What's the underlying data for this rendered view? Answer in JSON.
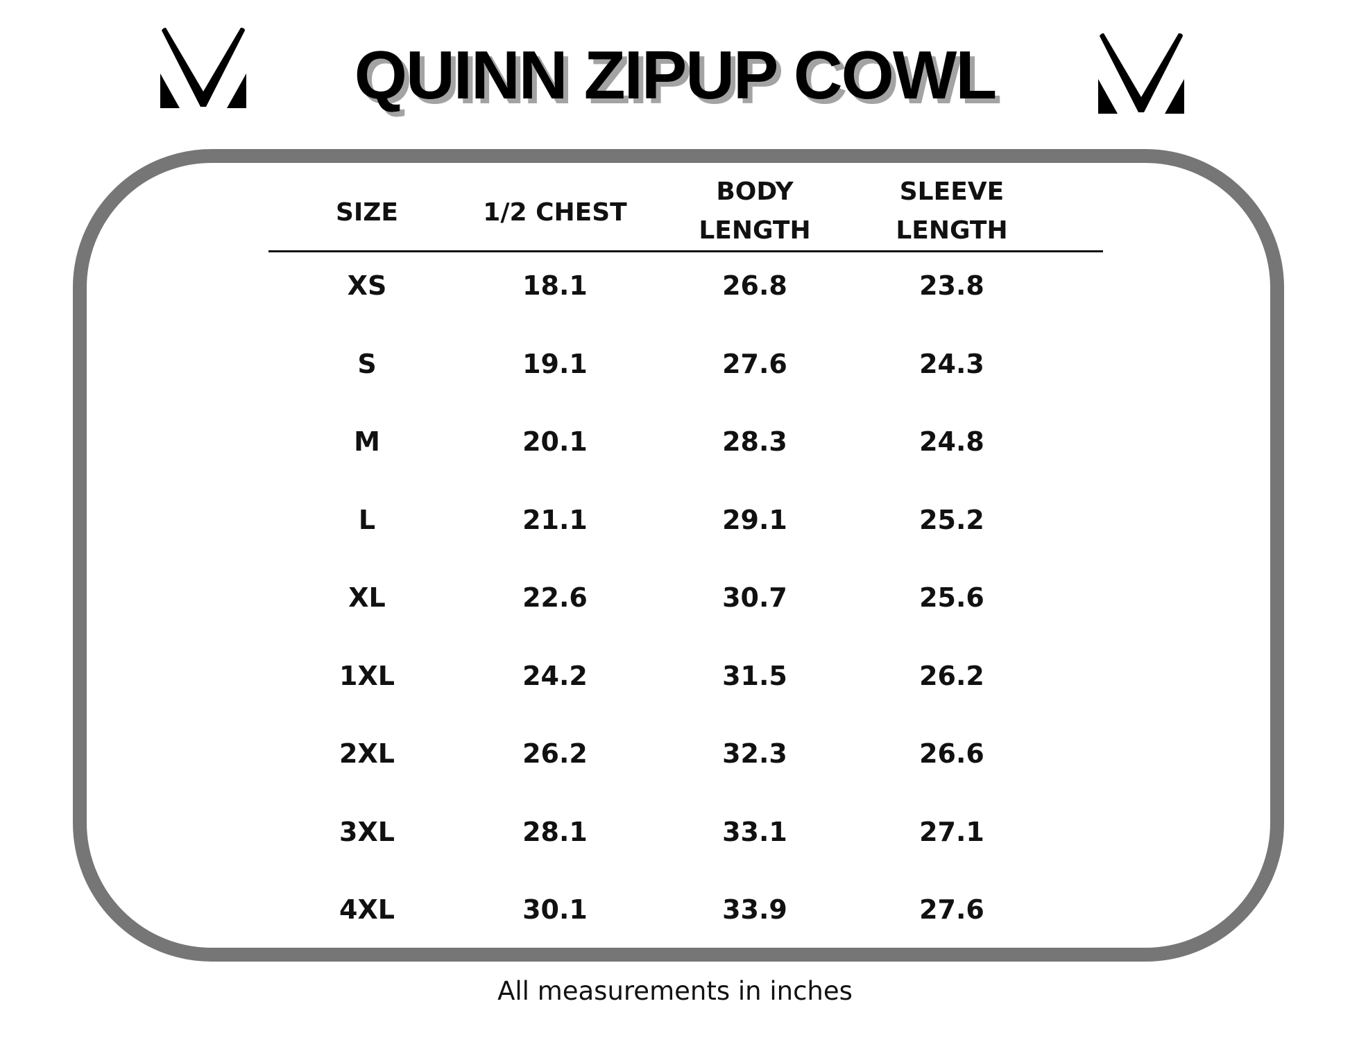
{
  "title": "QUINN ZIPUP COWL",
  "logo_icon": "m-logo-icon",
  "columns": [
    {
      "line1": "SIZE",
      "line2": ""
    },
    {
      "line1": "1/2 CHEST",
      "line2": ""
    },
    {
      "line1": "BODY",
      "line2": "LENGTH"
    },
    {
      "line1": "SLEEVE",
      "line2": "LENGTH"
    }
  ],
  "rows": [
    [
      "XS",
      "18.1",
      "26.8",
      "23.8"
    ],
    [
      "S",
      "19.1",
      "27.6",
      "24.3"
    ],
    [
      "M",
      "20.1",
      "28.3",
      "24.8"
    ],
    [
      "L",
      "21.1",
      "29.1",
      "25.2"
    ],
    [
      "XL",
      "22.6",
      "30.7",
      "25.6"
    ],
    [
      "1XL",
      "24.2",
      "31.5",
      "26.2"
    ],
    [
      "2XL",
      "26.2",
      "32.3",
      "26.6"
    ],
    [
      "3XL",
      "28.1",
      "33.1",
      "27.1"
    ],
    [
      "4XL",
      "30.1",
      "33.9",
      "27.6"
    ]
  ],
  "footer": "All measurements in inches",
  "colors": {
    "border": "#767676",
    "title_shadow": "#a3a3a3",
    "text": "#111111"
  }
}
